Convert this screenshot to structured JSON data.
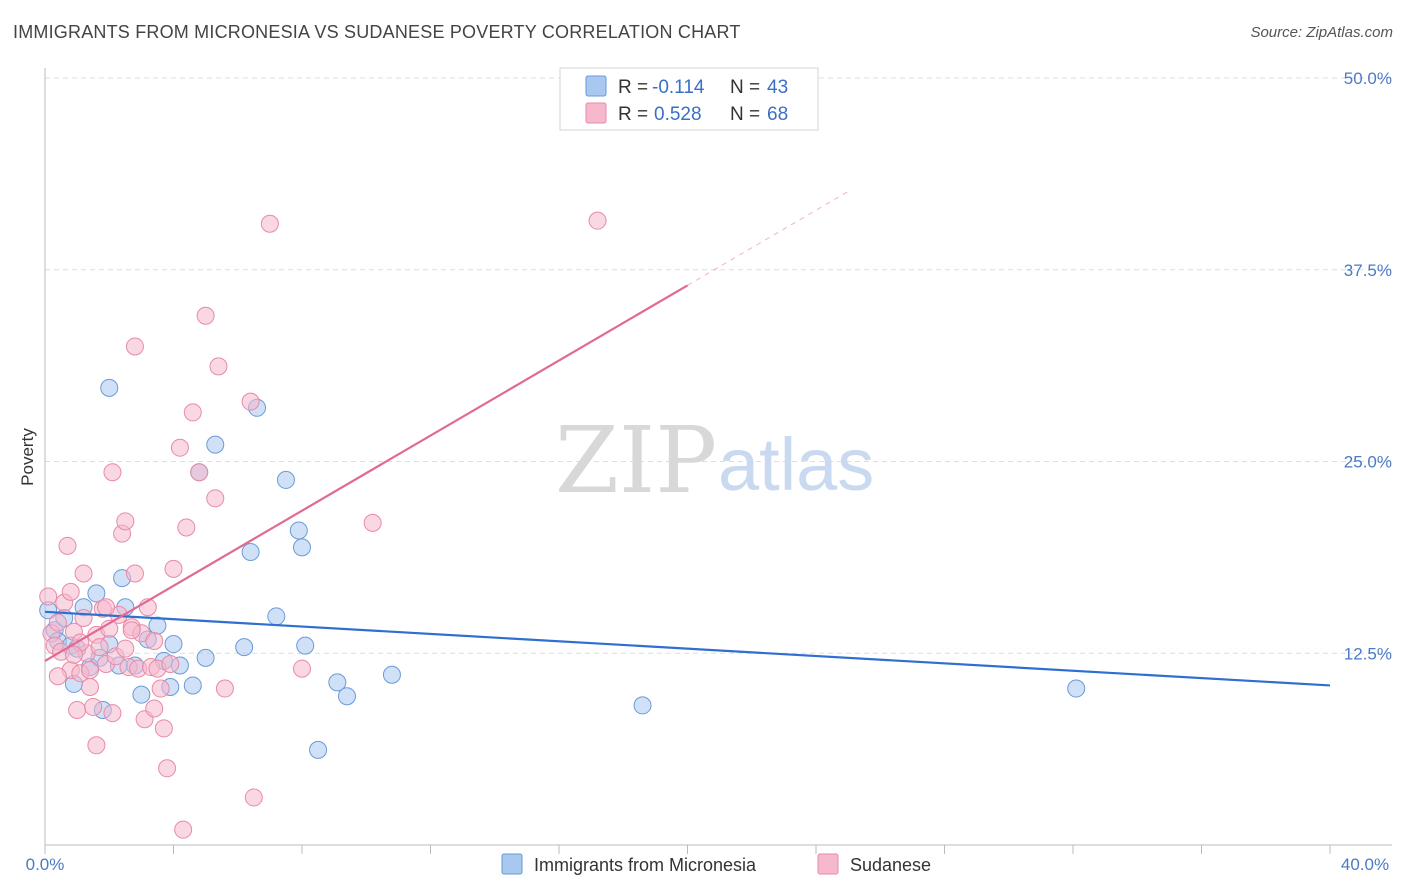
{
  "title": "IMMIGRANTS FROM MICRONESIA VS SUDANESE POVERTY CORRELATION CHART",
  "source": "Source: ZipAtlas.com",
  "watermark": {
    "zip": "ZIP",
    "atlas": "atlas"
  },
  "colors": {
    "blue_fill": "#a9c8f0",
    "blue_stroke": "#6a9ad8",
    "blue_line": "#2f6fcf",
    "pink_fill": "#f5b8cc",
    "pink_stroke": "#e88aa8",
    "pink_line": "#e06a92",
    "grid": "#dddddd",
    "axis_text": "#4a7ac7"
  },
  "legend": {
    "rows": [
      {
        "r_label": "R =",
        "r_value": "-0.114",
        "n_label": "N =",
        "n_value": "43",
        "series": "blue"
      },
      {
        "r_label": "R =",
        "r_value": "0.528",
        "n_label": "N =",
        "n_value": "68",
        "series": "pink"
      }
    ]
  },
  "chart_data": {
    "type": "scatter",
    "title": "IMMIGRANTS FROM MICRONESIA VS SUDANESE POVERTY CORRELATION CHART",
    "xlabel": "",
    "ylabel": "Poverty",
    "xlim": [
      0,
      40
    ],
    "ylim": [
      0,
      50
    ],
    "x_tick_labels": [
      "0.0%",
      "40.0%"
    ],
    "y_ticks": [
      12.5,
      25.0,
      37.5,
      50.0
    ],
    "y_tick_labels": [
      "12.5%",
      "25.0%",
      "37.5%",
      "50.0%"
    ],
    "grid": true,
    "legend_position": "top-center",
    "series": [
      {
        "name": "Immigrants from Micronesia",
        "color": "blue",
        "r": -0.114,
        "n": 43,
        "trend": {
          "x": [
            0,
            40
          ],
          "y": [
            15.2,
            10.4
          ],
          "solid_until": 40
        },
        "points": [
          [
            0.1,
            15.3
          ],
          [
            0.3,
            14.0
          ],
          [
            0.4,
            13.3
          ],
          [
            0.6,
            14.8
          ],
          [
            0.8,
            13.0
          ],
          [
            0.9,
            10.5
          ],
          [
            1.0,
            12.8
          ],
          [
            1.2,
            15.5
          ],
          [
            1.4,
            11.6
          ],
          [
            1.6,
            16.4
          ],
          [
            1.7,
            12.2
          ],
          [
            1.8,
            8.8
          ],
          [
            2.0,
            13.1
          ],
          [
            2.3,
            11.7
          ],
          [
            2.4,
            17.4
          ],
          [
            2.5,
            15.5
          ],
          [
            2.8,
            11.7
          ],
          [
            3.0,
            9.8
          ],
          [
            3.2,
            13.4
          ],
          [
            3.5,
            14.3
          ],
          [
            3.7,
            12.0
          ],
          [
            3.9,
            10.3
          ],
          [
            4.0,
            13.1
          ],
          [
            4.2,
            11.7
          ],
          [
            4.6,
            10.4
          ],
          [
            5.0,
            12.2
          ],
          [
            4.8,
            24.3
          ],
          [
            5.3,
            26.1
          ],
          [
            6.2,
            12.9
          ],
          [
            6.4,
            19.1
          ],
          [
            6.6,
            28.5
          ],
          [
            7.2,
            14.9
          ],
          [
            7.5,
            23.8
          ],
          [
            7.9,
            20.5
          ],
          [
            8.0,
            19.4
          ],
          [
            8.1,
            13.0
          ],
          [
            9.1,
            10.6
          ],
          [
            9.4,
            9.7
          ],
          [
            10.8,
            11.1
          ],
          [
            8.5,
            6.2
          ],
          [
            2.0,
            29.8
          ],
          [
            18.6,
            9.1
          ],
          [
            32.1,
            10.2
          ]
        ]
      },
      {
        "name": "Sudanese",
        "color": "pink",
        "r": 0.528,
        "n": 68,
        "trend": {
          "x": [
            0,
            25
          ],
          "y": [
            12.0,
            42.6
          ],
          "solid_until": 20
        },
        "points": [
          [
            0.1,
            16.2
          ],
          [
            0.2,
            13.8
          ],
          [
            0.3,
            13.0
          ],
          [
            0.4,
            14.5
          ],
          [
            0.5,
            12.6
          ],
          [
            0.6,
            15.8
          ],
          [
            0.7,
            19.5
          ],
          [
            0.8,
            11.4
          ],
          [
            0.9,
            13.9
          ],
          [
            1.0,
            8.8
          ],
          [
            1.1,
            11.2
          ],
          [
            1.2,
            14.8
          ],
          [
            1.3,
            12.5
          ],
          [
            1.4,
            10.3
          ],
          [
            1.5,
            9.0
          ],
          [
            1.6,
            13.7
          ],
          [
            1.7,
            12.9
          ],
          [
            1.8,
            15.4
          ],
          [
            1.9,
            11.8
          ],
          [
            2.0,
            14.1
          ],
          [
            2.1,
            8.6
          ],
          [
            2.2,
            12.3
          ],
          [
            2.3,
            15.0
          ],
          [
            2.4,
            20.3
          ],
          [
            2.5,
            21.1
          ],
          [
            2.6,
            11.6
          ],
          [
            2.7,
            14.2
          ],
          [
            2.8,
            17.7
          ],
          [
            2.9,
            11.5
          ],
          [
            3.0,
            13.8
          ],
          [
            3.1,
            8.2
          ],
          [
            3.2,
            15.5
          ],
          [
            3.3,
            11.6
          ],
          [
            3.4,
            8.9
          ],
          [
            3.5,
            11.5
          ],
          [
            3.6,
            10.2
          ],
          [
            3.7,
            7.6
          ],
          [
            3.8,
            5.0
          ],
          [
            3.9,
            11.8
          ],
          [
            4.0,
            18.0
          ],
          [
            4.2,
            25.9
          ],
          [
            4.4,
            20.7
          ],
          [
            4.6,
            28.2
          ],
          [
            4.8,
            24.3
          ],
          [
            5.0,
            34.5
          ],
          [
            5.3,
            22.6
          ],
          [
            5.4,
            31.2
          ],
          [
            5.6,
            10.2
          ],
          [
            6.4,
            28.9
          ],
          [
            6.5,
            3.1
          ],
          [
            7.0,
            40.5
          ],
          [
            8.0,
            11.5
          ],
          [
            10.2,
            21.0
          ],
          [
            2.8,
            32.5
          ],
          [
            1.2,
            17.7
          ],
          [
            2.1,
            24.3
          ],
          [
            0.4,
            11.0
          ],
          [
            1.6,
            6.5
          ],
          [
            2.5,
            12.8
          ],
          [
            3.4,
            13.3
          ],
          [
            1.9,
            15.5
          ],
          [
            0.8,
            16.5
          ],
          [
            1.1,
            13.2
          ],
          [
            4.3,
            1.0
          ],
          [
            2.7,
            14.0
          ],
          [
            0.9,
            12.4
          ],
          [
            17.2,
            40.7
          ],
          [
            1.4,
            11.4
          ]
        ]
      }
    ]
  },
  "bottom_legend": [
    {
      "label": "Immigrants from Micronesia",
      "series": "blue"
    },
    {
      "label": "Sudanese",
      "series": "pink"
    }
  ]
}
